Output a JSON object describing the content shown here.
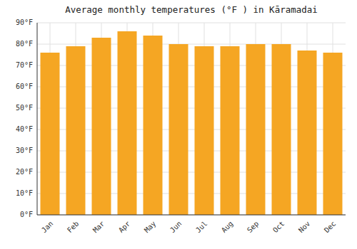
{
  "chart_data": {
    "type": "bar",
    "title": "Average monthly temperatures (°F ) in Kāramadai",
    "categories": [
      "Jan",
      "Feb",
      "Mar",
      "Apr",
      "May",
      "Jun",
      "Jul",
      "Aug",
      "Sep",
      "Oct",
      "Nov",
      "Dec"
    ],
    "values": [
      76,
      79,
      83,
      86,
      84,
      80,
      79,
      79,
      80,
      80,
      77,
      76
    ],
    "color": "#F5A623",
    "ylim": [
      0,
      90
    ],
    "yticks": [
      {
        "value": 0,
        "label": "0°F"
      },
      {
        "value": 10,
        "label": "10°F"
      },
      {
        "value": 20,
        "label": "20°F"
      },
      {
        "value": 30,
        "label": "30°F"
      },
      {
        "value": 40,
        "label": "40°F"
      },
      {
        "value": 50,
        "label": "50°F"
      },
      {
        "value": 60,
        "label": "60°F"
      },
      {
        "value": 70,
        "label": "70°F"
      },
      {
        "value": 80,
        "label": "80°F"
      },
      {
        "value": 90,
        "label": "90°F"
      }
    ],
    "grid": true
  }
}
